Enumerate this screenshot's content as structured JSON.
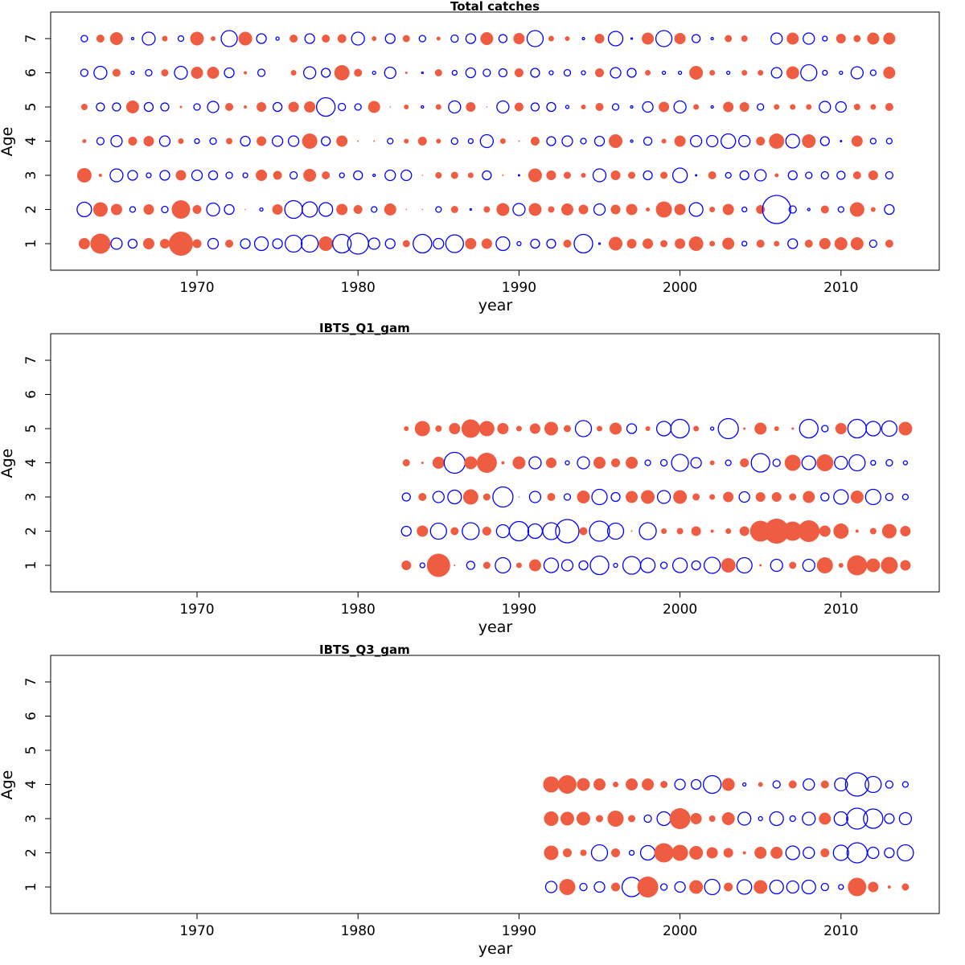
{
  "colors": {
    "positive": "#EE5C42",
    "negative": "#0000FF"
  },
  "chart_data": [
    {
      "type": "scatter",
      "title": "Total catches",
      "xlabel": "year",
      "ylabel": "Age",
      "xlim": [
        1961,
        2016
      ],
      "ylim": [
        0.2,
        7.8
      ],
      "xticks": [
        1970,
        1980,
        1990,
        2000,
        2010
      ],
      "yticks": [
        1,
        2,
        3,
        4,
        5,
        6,
        7
      ],
      "grid": false,
      "year_start": 1963,
      "ages": [
        {
          "age": 1,
          "values": [
            0.7,
            1.25,
            -0.7,
            -0.55,
            0.7,
            0.6,
            1.5,
            0.55,
            -0.65,
            0.5,
            -0.6,
            -0.85,
            -0.6,
            -1.05,
            -1.05,
            0.9,
            -1.15,
            -1.3,
            -0.7,
            -0.6,
            0.45,
            -1.15,
            -0.65,
            -1.1,
            0.7,
            0.65,
            -0.85,
            -0.25,
            -0.55,
            -0.55,
            0.5,
            -1.15,
            -0.1,
            0.85,
            0.6,
            0.65,
            0.45,
            0.65,
            0.9,
            0.35,
            0.75,
            -0.3,
            0.5,
            0.35,
            -0.6,
            0.5,
            0.7,
            0.8,
            0.8,
            -0.45,
            0.5
          ]
        },
        {
          "age": 2,
          "values": [
            -0.9,
            0.9,
            0.7,
            -0.35,
            0.65,
            -0.4,
            1.15,
            0.55,
            -0.8,
            -0.6,
            0.05,
            -0.2,
            0.65,
            -1.1,
            -0.95,
            -0.85,
            0.7,
            0.55,
            -0.35,
            0.75,
            0.05,
            0.05,
            -0.35,
            0.45,
            -0.1,
            0.4,
            0.8,
            -0.75,
            0.8,
            0.4,
            0.75,
            0.6,
            -0.7,
            0.6,
            0.7,
            0.25,
            1.0,
            0.7,
            -0.85,
            0.35,
            0.7,
            -0.3,
            0.55,
            -1.75,
            -0.45,
            -0.15,
            0.5,
            -0.35,
            0.9,
            0.3,
            -0.6
          ]
        },
        {
          "age": 3,
          "values": [
            0.9,
            0.2,
            -0.8,
            -0.6,
            -0.3,
            -0.6,
            0.65,
            -0.65,
            -0.55,
            -0.4,
            -0.3,
            0.7,
            0.55,
            -0.45,
            0.8,
            0.5,
            -0.3,
            -0.55,
            -0.15,
            -0.65,
            -0.65,
            0.05,
            0.4,
            0.45,
            0.35,
            -0.55,
            0.1,
            -0.05,
            0.85,
            0.6,
            0.45,
            0.3,
            -0.8,
            0.6,
            0.45,
            -0.55,
            0.45,
            -0.9,
            -0.05,
            0.5,
            -0.35,
            -0.55,
            -0.7,
            0.25,
            -0.55,
            -0.4,
            -0.45,
            -0.5,
            0.5,
            0.6,
            -0.45
          ]
        },
        {
          "age": 4,
          "values": [
            0.25,
            -0.45,
            -0.7,
            0.55,
            0.65,
            -0.65,
            0.35,
            -0.3,
            -0.4,
            0.4,
            -0.6,
            0.6,
            -0.65,
            -0.65,
            0.95,
            -0.55,
            0.7,
            0.1,
            0.1,
            -0.35,
            0.3,
            0.55,
            0.3,
            -0.4,
            -0.3,
            -0.8,
            0.35,
            0.1,
            0.55,
            -0.55,
            -0.65,
            -0.35,
            -0.6,
            0.85,
            -0.15,
            -0.5,
            0.3,
            0.7,
            -0.7,
            -0.7,
            -0.9,
            -0.7,
            0.55,
            0.95,
            -0.85,
            0.85,
            -0.55,
            -0.05,
            0.7,
            -0.35,
            -0.35
          ]
        },
        {
          "age": 5,
          "values": [
            0.4,
            -0.5,
            -0.5,
            0.8,
            -0.55,
            -0.5,
            0.15,
            -0.4,
            -0.7,
            0.5,
            0.2,
            0.6,
            -0.55,
            0.65,
            0.7,
            -1.15,
            -0.45,
            -0.4,
            0.75,
            0.05,
            0.3,
            -0.15,
            0.35,
            -0.75,
            0.6,
            0.05,
            -0.75,
            0.55,
            -0.5,
            -0.55,
            -0.2,
            0.3,
            0.5,
            -0.4,
            -0.15,
            -0.65,
            0.65,
            -0.75,
            0.35,
            -0.15,
            0.65,
            0.6,
            -0.4,
            0.35,
            0.35,
            0.35,
            -0.7,
            -0.65,
            0.4,
            0.35,
            0.5
          ]
        },
        {
          "age": 6,
          "values": [
            -0.45,
            -0.8,
            0.5,
            -0.2,
            -0.4,
            0.45,
            -0.8,
            0.75,
            0.75,
            -0.6,
            0.2,
            -0.45,
            null,
            0.35,
            -0.75,
            -0.55,
            0.95,
            0.5,
            -0.2,
            -0.7,
            0.15,
            -0.1,
            0.45,
            -0.3,
            -0.6,
            -0.45,
            -0.5,
            0.55,
            -0.55,
            -0.25,
            -0.4,
            -0.25,
            0.55,
            -0.65,
            -0.55,
            0.35,
            -0.2,
            -0.2,
            0.85,
            0.35,
            -0.2,
            0.35,
            0.35,
            -0.65,
            0.8,
            -1.0,
            -0.3,
            -0.2,
            -0.75,
            -0.35,
            0.75
          ]
        },
        {
          "age": 7,
          "values": [
            -0.4,
            0.5,
            0.8,
            -0.15,
            -0.8,
            0.35,
            -0.35,
            0.85,
            0.3,
            -1.0,
            0.85,
            -0.6,
            -0.2,
            0.5,
            -0.6,
            0.5,
            0.55,
            -0.8,
            0.3,
            -0.6,
            0.45,
            -0.4,
            0.25,
            -0.45,
            -0.6,
            0.8,
            -0.5,
            0.7,
            -1.0,
            0.35,
            0.3,
            -0.15,
            0.6,
            -0.9,
            -0.1,
            0.75,
            -1.0,
            0.7,
            -0.5,
            -0.15,
            0.45,
            0.4,
            null,
            -0.7,
            0.75,
            -0.7,
            -0.3,
            0.6,
            0.45,
            0.75,
            0.75
          ]
        }
      ]
    },
    {
      "type": "scatter",
      "title": "IBTS_Q1_gam",
      "xlabel": "year",
      "ylabel": "Age",
      "xlim": [
        1961,
        2016
      ],
      "ylim": [
        0.2,
        7.8
      ],
      "xticks": [
        1970,
        1980,
        1990,
        2000,
        2010
      ],
      "yticks": [
        1,
        2,
        3,
        4,
        5,
        6,
        7
      ],
      "grid": false,
      "year_start": 1983,
      "ages": [
        {
          "age": 1,
          "values": [
            0.6,
            -0.3,
            1.45,
            0.1,
            -0.5,
            0.45,
            -0.95,
            0.35,
            0.75,
            -0.9,
            -0.7,
            -0.55,
            -1.15,
            -0.25,
            -1.1,
            -0.9,
            -0.4,
            -0.9,
            -0.55,
            -1.0,
            0.9,
            -0.95,
            0.15,
            -0.75,
            0.45,
            -0.75,
            1.0,
            0.3,
            1.25,
            0.85,
            1.05,
            0.65
          ]
        },
        {
          "age": 2,
          "values": [
            -0.6,
            0.7,
            -1.0,
            0.5,
            -1.05,
            0.55,
            -0.8,
            -1.2,
            -0.9,
            -1.05,
            -1.45,
            0.5,
            -1.25,
            -1.0,
            0.1,
            -1.05,
            0.35,
            0.4,
            0.6,
            0.2,
            0.35,
            0.6,
            1.3,
            1.55,
            1.2,
            1.35,
            0.7,
            0.95,
            0.2,
            0.4,
            0.9,
            0.65
          ]
        },
        {
          "age": 3,
          "values": [
            -0.5,
            0.5,
            -0.7,
            -0.85,
            0.95,
            0.45,
            -1.25,
            0.05,
            -0.7,
            0.5,
            -0.4,
            0.8,
            -0.95,
            -0.55,
            0.75,
            0.85,
            -0.8,
            0.85,
            0.45,
            0.35,
            0.65,
            -0.65,
            0.6,
            0.6,
            0.45,
            0.75,
            -0.5,
            -0.9,
            0.8,
            -0.95,
            -0.45,
            -0.35
          ]
        },
        {
          "age": 4,
          "values": [
            0.45,
            0.15,
            0.75,
            -1.3,
            0.8,
            1.25,
            0.2,
            0.8,
            -0.75,
            0.65,
            -0.25,
            -0.75,
            0.75,
            0.55,
            0.75,
            -0.35,
            -0.4,
            -1.05,
            -0.65,
            0.3,
            -0.35,
            0.55,
            -1.15,
            -0.45,
            1.0,
            -0.85,
            1.05,
            -0.8,
            -1.0,
            -0.3,
            -0.4,
            -0.25
          ]
        },
        {
          "age": 5,
          "values": [
            0.3,
            0.95,
            0.4,
            0.7,
            1.15,
            0.95,
            0.7,
            0.35,
            0.65,
            0.85,
            0.45,
            -1.0,
            0.35,
            0.75,
            -0.6,
            0.3,
            -0.9,
            -1.15,
            0.35,
            -0.2,
            -1.25,
            0.15,
            0.75,
            0.3,
            0.15,
            -1.15,
            -0.4,
            0.7,
            -1.15,
            -0.9,
            -0.95,
            0.85
          ]
        }
      ]
    },
    {
      "type": "scatter",
      "title": "IBTS_Q3_gam",
      "xlabel": "year",
      "ylabel": "Age",
      "xlim": [
        1961,
        2016
      ],
      "ylim": [
        0.2,
        7.8
      ],
      "xticks": [
        1970,
        1980,
        1990,
        2000,
        2010
      ],
      "yticks": [
        1,
        2,
        3,
        4,
        5,
        6,
        7
      ],
      "grid": false,
      "year_start": 1992,
      "ages": [
        {
          "age": 1,
          "values": [
            -0.7,
            1.0,
            -0.45,
            -0.65,
            0.55,
            -1.2,
            1.3,
            -0.4,
            -0.65,
            0.85,
            -0.95,
            0.55,
            -0.9,
            0.85,
            -0.85,
            -0.75,
            -0.85,
            -0.45,
            -0.3,
            1.15,
            0.65,
            0.2,
            0.45
          ]
        },
        {
          "age": 2,
          "values": [
            0.9,
            0.55,
            0.4,
            -1.0,
            0.55,
            -0.3,
            -0.9,
            1.2,
            1.0,
            0.85,
            0.7,
            0.6,
            0.2,
            0.75,
            0.75,
            -0.85,
            -0.7,
            0.55,
            -0.95,
            -1.25,
            -0.7,
            -0.6,
            -1.0
          ]
        },
        {
          "age": 3,
          "values": [
            0.9,
            0.85,
            0.85,
            0.45,
            1.0,
            0.45,
            -0.45,
            -0.85,
            1.3,
            0.7,
            0.4,
            0.8,
            -0.8,
            -0.25,
            -0.85,
            -0.35,
            -0.8,
            0.75,
            -0.85,
            -1.3,
            -1.2,
            -0.6,
            -0.75
          ]
        },
        {
          "age": 4,
          "values": [
            1.0,
            1.15,
            0.8,
            0.75,
            0.35,
            0.75,
            0.75,
            0.45,
            -0.65,
            -0.6,
            -1.1,
            0.8,
            -0.2,
            0.3,
            -0.45,
            0.5,
            -0.7,
            0.5,
            -0.8,
            -1.45,
            -1.0,
            -0.45,
            -0.35
          ]
        }
      ]
    }
  ]
}
